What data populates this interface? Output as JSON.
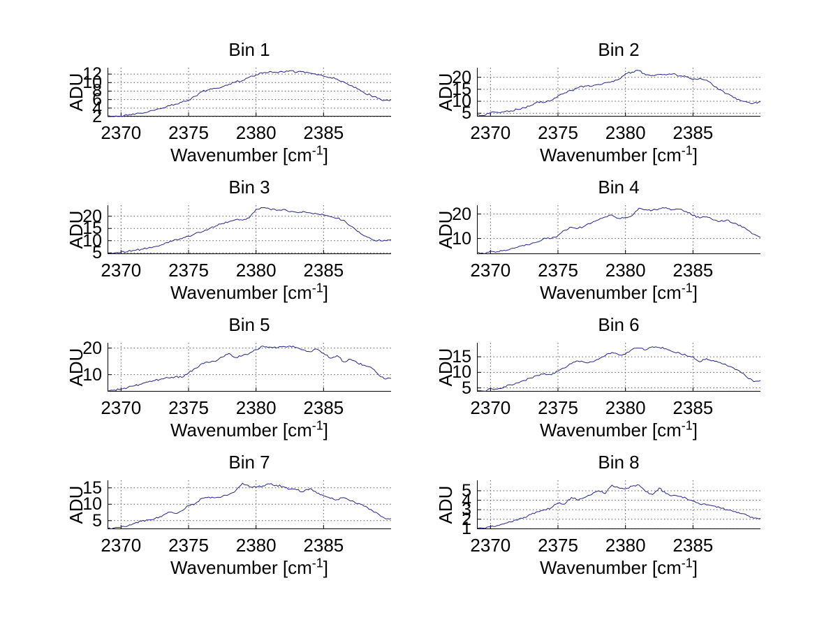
{
  "figure": {
    "background": "#ffffff"
  },
  "colors": {
    "line": "#24248c",
    "grid": "#555555",
    "axis": "#000000",
    "text": "#000000"
  },
  "ylabel": "ADU",
  "xlabel": {
    "pre": "Wavenumber [cm",
    "sup": "-1",
    "post": "]"
  },
  "x_axis": {
    "range": [
      2369,
      2390
    ],
    "ticks": [
      2370,
      2375,
      2380,
      2385
    ],
    "grid": true
  },
  "chart_data": [
    {
      "type": "line",
      "title": "Bin 1",
      "x_start": 2369,
      "x_step": 0.5,
      "ylim": [
        2,
        13.5
      ],
      "y_ticks": [
        2,
        4,
        6,
        8,
        10,
        12
      ],
      "values": [
        2.0,
        2.0,
        2.1,
        2.3,
        2.5,
        2.8,
        3.1,
        3.5,
        3.9,
        4.6,
        4.9,
        5.4,
        5.9,
        6.8,
        7.9,
        8.3,
        8.6,
        9.0,
        9.6,
        10.2,
        10.5,
        11.3,
        11.8,
        12.2,
        12.6,
        12.4,
        12.5,
        12.8,
        12.4,
        12.6,
        12.2,
        11.8,
        11.5,
        11.2,
        10.8,
        10.2,
        9.3,
        8.5,
        7.6,
        7.0,
        6.3,
        5.8,
        6.0
      ]
    },
    {
      "type": "line",
      "title": "Bin 2",
      "x_start": 2369,
      "x_step": 0.5,
      "ylim": [
        3.6,
        24
      ],
      "y_ticks": [
        5,
        10,
        15,
        20
      ],
      "values": [
        4.2,
        4.0,
        5.2,
        5.4,
        5.6,
        6.0,
        6.6,
        7.3,
        8.2,
        9.8,
        9.5,
        10.3,
        12.2,
        13.5,
        14.5,
        15.6,
        16.4,
        16.2,
        17.0,
        17.8,
        18.3,
        19.2,
        21.5,
        22.2,
        22.8,
        21.0,
        20.8,
        21.2,
        21.0,
        21.4,
        20.6,
        20.2,
        19.0,
        19.6,
        18.8,
        16.5,
        14.8,
        13.2,
        11.5,
        10.4,
        9.6,
        9.2,
        9.8
      ]
    },
    {
      "type": "line",
      "title": "Bin 3",
      "x_start": 2369,
      "x_step": 0.5,
      "ylim": [
        4.5,
        24.5
      ],
      "y_ticks": [
        5,
        10,
        15,
        20
      ],
      "values": [
        4.8,
        4.9,
        5.3,
        5.6,
        6.0,
        6.5,
        7.0,
        7.6,
        8.3,
        9.2,
        10.5,
        10.8,
        11.8,
        13.0,
        13.6,
        14.8,
        16.0,
        17.0,
        17.8,
        18.6,
        18.4,
        19.4,
        22.8,
        23.5,
        23.0,
        22.4,
        22.8,
        21.8,
        21.6,
        22.0,
        21.4,
        21.0,
        20.6,
        19.8,
        19.2,
        18.4,
        16.0,
        13.8,
        12.0,
        10.8,
        10.0,
        10.2,
        10.4
      ]
    },
    {
      "type": "line",
      "title": "Bin 4",
      "x_start": 2369,
      "x_step": 0.5,
      "ylim": [
        3.6,
        23.6
      ],
      "y_ticks": [
        10,
        20
      ],
      "values": [
        4.4,
        3.8,
        4.8,
        4.6,
        5.2,
        5.8,
        6.4,
        7.0,
        7.8,
        8.6,
        10.2,
        10.0,
        11.2,
        13.4,
        14.6,
        14.2,
        15.2,
        16.4,
        17.6,
        18.8,
        19.6,
        18.2,
        18.6,
        19.4,
        22.4,
        21.8,
        21.6,
        22.2,
        22.6,
        21.8,
        22.0,
        21.0,
        19.4,
        18.4,
        18.8,
        17.6,
        17.0,
        17.6,
        16.2,
        15.4,
        13.6,
        11.8,
        10.4
      ]
    },
    {
      "type": "line",
      "title": "Bin 5",
      "x_start": 2369,
      "x_step": 0.5,
      "ylim": [
        3.6,
        22
      ],
      "y_ticks": [
        10,
        20
      ],
      "values": [
        3.8,
        4.2,
        4.6,
        5.2,
        5.8,
        6.4,
        7.2,
        7.8,
        8.4,
        8.8,
        9.2,
        9.0,
        10.6,
        12.4,
        14.2,
        14.6,
        15.0,
        16.6,
        18.0,
        16.4,
        17.2,
        18.0,
        19.4,
        20.8,
        20.4,
        20.0,
        20.6,
        20.8,
        20.2,
        19.4,
        18.6,
        19.6,
        18.0,
        16.2,
        17.2,
        14.8,
        15.8,
        14.4,
        13.6,
        12.8,
        10.4,
        8.4,
        8.6
      ]
    },
    {
      "type": "line",
      "title": "Bin 6",
      "x_start": 2369,
      "x_step": 0.5,
      "ylim": [
        3.8,
        19.5
      ],
      "y_ticks": [
        5,
        10,
        15
      ],
      "values": [
        4.2,
        4.0,
        4.8,
        4.6,
        5.4,
        6.0,
        6.6,
        7.4,
        8.2,
        9.0,
        9.6,
        9.2,
        10.4,
        11.4,
        12.8,
        13.6,
        13.2,
        13.4,
        14.2,
        15.4,
        16.4,
        15.6,
        15.8,
        17.4,
        17.8,
        17.2,
        18.2,
        18.0,
        17.6,
        16.6,
        16.2,
        15.4,
        15.0,
        13.4,
        14.4,
        13.8,
        13.2,
        12.2,
        11.4,
        10.2,
        8.4,
        7.0,
        7.4
      ]
    },
    {
      "type": "line",
      "title": "Bin 7",
      "x_start": 2369,
      "x_step": 0.5,
      "ylim": [
        2.4,
        17.3
      ],
      "y_ticks": [
        5,
        10,
        15
      ],
      "values": [
        2.6,
        2.8,
        3.0,
        3.4,
        4.2,
        4.8,
        5.2,
        5.6,
        6.2,
        7.6,
        7.2,
        8.0,
        9.6,
        10.2,
        11.8,
        12.2,
        12.0,
        12.4,
        13.0,
        14.2,
        16.4,
        15.4,
        15.2,
        15.6,
        16.2,
        15.8,
        15.4,
        14.6,
        14.4,
        13.8,
        14.8,
        13.4,
        12.6,
        11.8,
        11.4,
        12.0,
        11.0,
        10.2,
        9.4,
        8.4,
        7.2,
        5.8,
        5.6
      ]
    },
    {
      "type": "line",
      "title": "Bin 8",
      "x_start": 2369,
      "x_step": 0.5,
      "ylim": [
        0.95,
        6.1
      ],
      "y_ticks": [
        1,
        2,
        3,
        4,
        5
      ],
      "values": [
        1.0,
        1.05,
        1.2,
        1.35,
        1.5,
        1.7,
        1.9,
        2.2,
        2.5,
        2.8,
        3.0,
        3.2,
        3.7,
        3.6,
        4.3,
        4.0,
        4.3,
        4.6,
        5.0,
        4.7,
        5.6,
        5.3,
        5.2,
        5.5,
        5.6,
        4.9,
        4.6,
        5.3,
        4.7,
        4.5,
        4.4,
        4.2,
        3.9,
        3.6,
        3.5,
        3.4,
        3.2,
        3.0,
        2.8,
        2.6,
        2.4,
        2.1,
        2.1
      ]
    }
  ]
}
